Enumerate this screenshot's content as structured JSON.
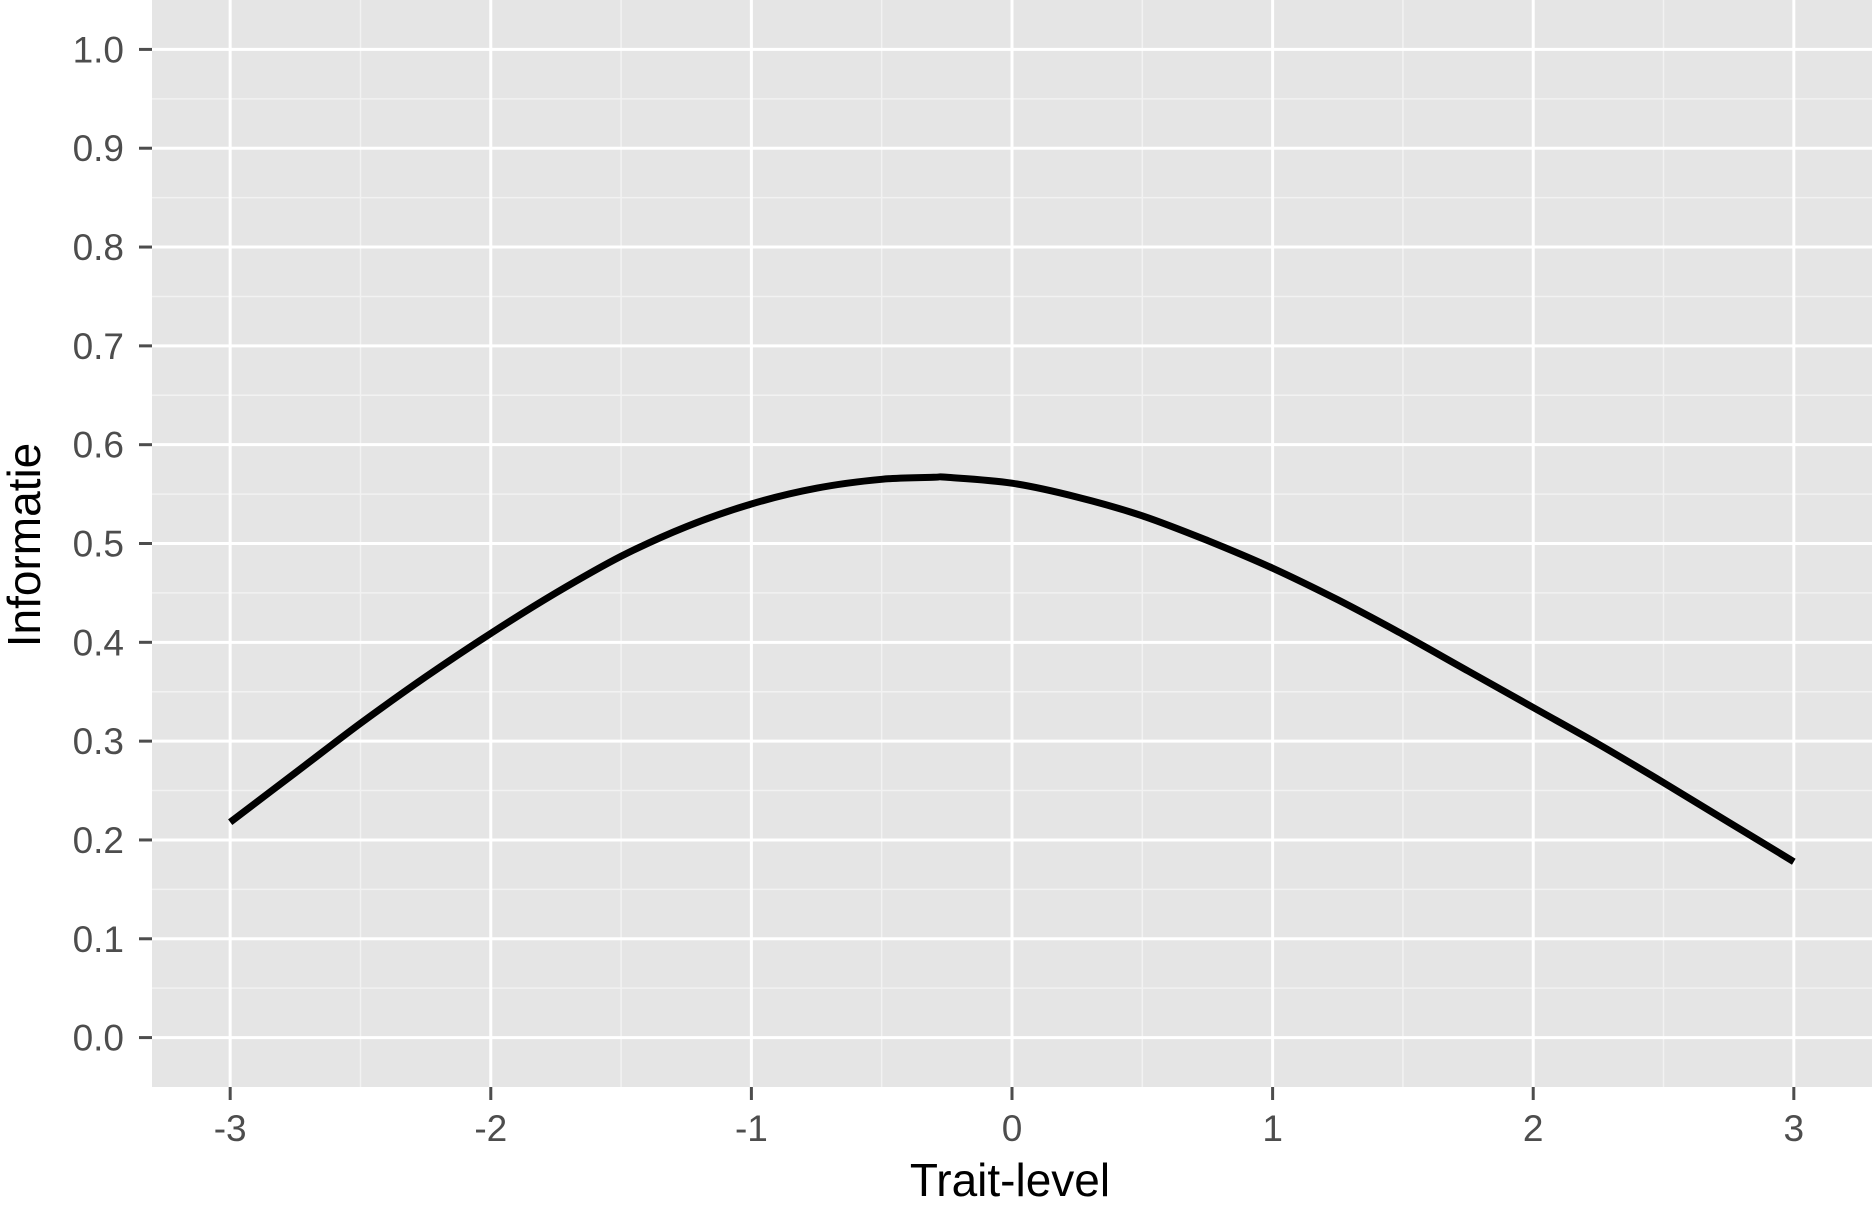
{
  "chart_data": {
    "type": "line",
    "title": "",
    "xlabel": "Trait-level",
    "ylabel": "Informatie",
    "xlim": [
      -3.3,
      3.3
    ],
    "ylim": [
      -0.05,
      1.05
    ],
    "x_ticks": [
      -3,
      -2,
      -1,
      0,
      1,
      2,
      3
    ],
    "x_tick_labels": [
      "-3",
      "-2",
      "-1",
      "0",
      "1",
      "2",
      "3"
    ],
    "y_ticks": [
      0.0,
      0.1,
      0.2,
      0.3,
      0.4,
      0.5,
      0.6,
      0.7,
      0.8,
      0.9,
      1.0
    ],
    "y_tick_labels": [
      "0.0",
      "0.1",
      "0.2",
      "0.3",
      "0.4",
      "0.5",
      "0.6",
      "0.7",
      "0.8",
      "0.9",
      "1.0"
    ],
    "grid": true,
    "legend": "none",
    "colors": {
      "panel_background": "#e5e5e5",
      "grid_major": "#ffffff",
      "grid_minor": "#f2f2f2",
      "line": "#000000",
      "tick_mark": "#4d4d4d",
      "tick_label": "#4d4d4d"
    },
    "series": [
      {
        "x": [
          -3.0,
          -2.75,
          -2.5,
          -2.25,
          -2.0,
          -1.75,
          -1.5,
          -1.25,
          -1.0,
          -0.75,
          -0.5,
          -0.3,
          -0.25,
          0.0,
          0.25,
          0.5,
          0.75,
          1.0,
          1.25,
          1.5,
          1.75,
          2.0,
          2.25,
          2.5,
          2.75,
          3.0
        ],
        "y": [
          0.218,
          0.268,
          0.318,
          0.365,
          0.409,
          0.45,
          0.487,
          0.517,
          0.54,
          0.556,
          0.565,
          0.567,
          0.567,
          0.561,
          0.547,
          0.528,
          0.503,
          0.475,
          0.443,
          0.408,
          0.371,
          0.334,
          0.297,
          0.258,
          0.218,
          0.178
        ]
      }
    ]
  }
}
